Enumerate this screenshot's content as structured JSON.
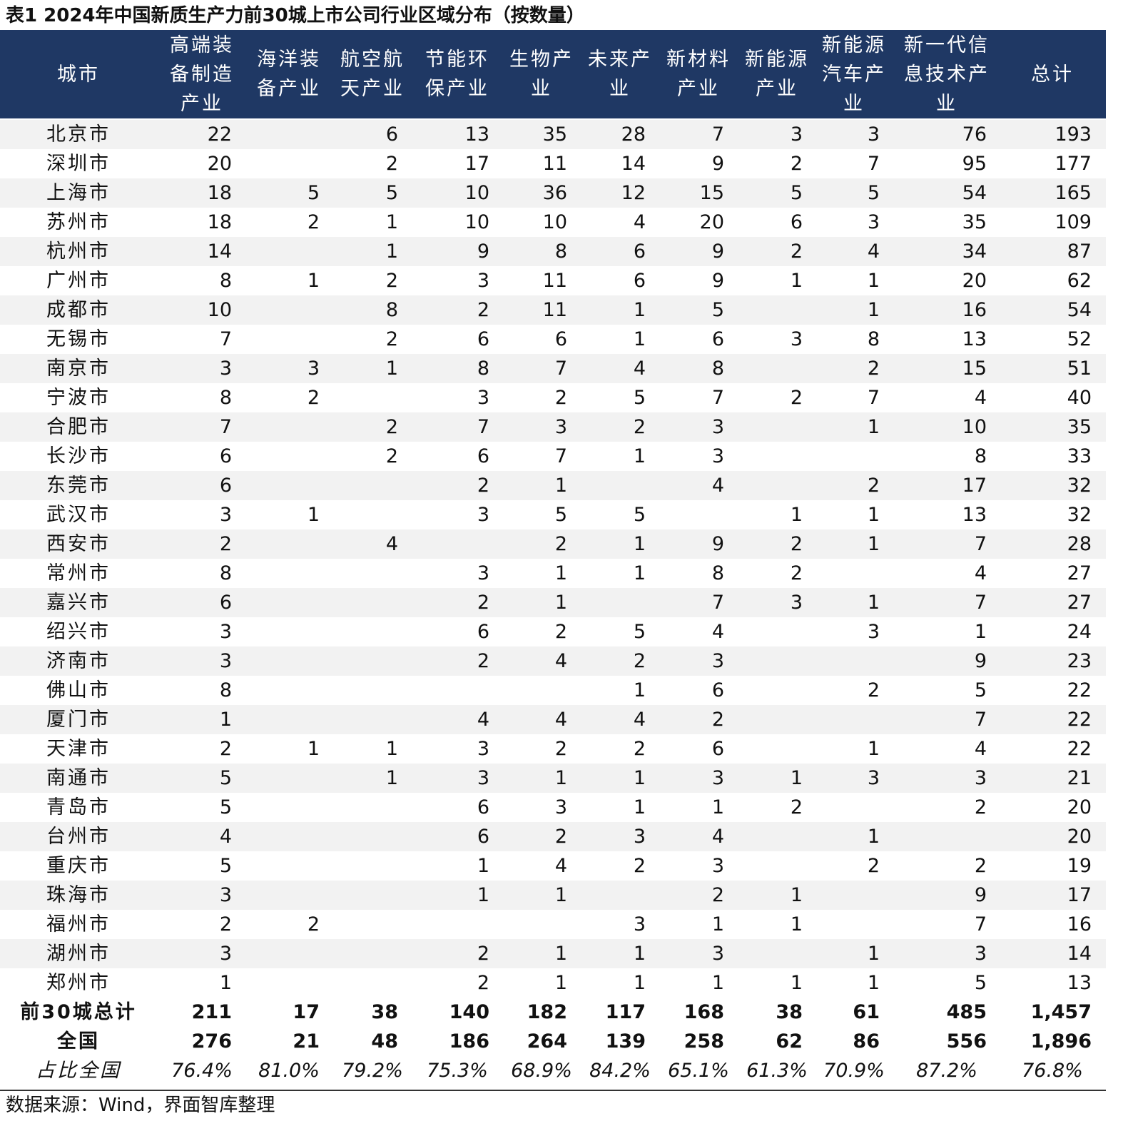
{
  "title": "表1 2024年中国新质生产力前30城上市公司行业区域分布（按数量）",
  "table": {
    "header": [
      [
        "城市"
      ],
      [
        "高端装",
        "备制造",
        "产业"
      ],
      [
        "海洋装",
        "备产业"
      ],
      [
        "航空航",
        "天产业"
      ],
      [
        "节能环",
        "保产业"
      ],
      [
        "生物产",
        "业"
      ],
      [
        "未来产",
        "业"
      ],
      [
        "新材料",
        "产业"
      ],
      [
        "新能源",
        "产业"
      ],
      [
        "新能源",
        "汽车产",
        "业"
      ],
      [
        "新一代信",
        "息技术产",
        "业"
      ],
      [
        "总计"
      ]
    ],
    "rows": [
      [
        "北京市",
        22,
        null,
        6,
        13,
        35,
        28,
        7,
        3,
        3,
        76,
        193
      ],
      [
        "深圳市",
        20,
        null,
        2,
        17,
        11,
        14,
        9,
        2,
        7,
        95,
        177
      ],
      [
        "上海市",
        18,
        5,
        5,
        10,
        36,
        12,
        15,
        5,
        5,
        54,
        165
      ],
      [
        "苏州市",
        18,
        2,
        1,
        10,
        10,
        4,
        20,
        6,
        3,
        35,
        109
      ],
      [
        "杭州市",
        14,
        null,
        1,
        9,
        8,
        6,
        9,
        2,
        4,
        34,
        87
      ],
      [
        "广州市",
        8,
        1,
        2,
        3,
        11,
        6,
        9,
        1,
        1,
        20,
        62
      ],
      [
        "成都市",
        10,
        null,
        8,
        2,
        11,
        1,
        5,
        null,
        1,
        16,
        54
      ],
      [
        "无锡市",
        7,
        null,
        2,
        6,
        6,
        1,
        6,
        3,
        8,
        13,
        52
      ],
      [
        "南京市",
        3,
        3,
        1,
        8,
        7,
        4,
        8,
        null,
        2,
        15,
        51
      ],
      [
        "宁波市",
        8,
        2,
        null,
        3,
        2,
        5,
        7,
        2,
        7,
        4,
        40
      ],
      [
        "合肥市",
        7,
        null,
        2,
        7,
        3,
        2,
        3,
        null,
        1,
        10,
        35
      ],
      [
        "长沙市",
        6,
        null,
        2,
        6,
        7,
        1,
        3,
        null,
        null,
        8,
        33
      ],
      [
        "东莞市",
        6,
        null,
        null,
        2,
        1,
        null,
        4,
        null,
        2,
        17,
        32
      ],
      [
        "武汉市",
        3,
        1,
        null,
        3,
        5,
        5,
        null,
        1,
        1,
        13,
        32
      ],
      [
        "西安市",
        2,
        null,
        4,
        null,
        2,
        1,
        9,
        2,
        1,
        7,
        28
      ],
      [
        "常州市",
        8,
        null,
        null,
        3,
        1,
        1,
        8,
        2,
        null,
        4,
        27
      ],
      [
        "嘉兴市",
        6,
        null,
        null,
        2,
        1,
        null,
        7,
        3,
        1,
        7,
        27
      ],
      [
        "绍兴市",
        3,
        null,
        null,
        6,
        2,
        5,
        4,
        null,
        3,
        1,
        24
      ],
      [
        "济南市",
        3,
        null,
        null,
        2,
        4,
        2,
        3,
        null,
        null,
        9,
        23
      ],
      [
        "佛山市",
        8,
        null,
        null,
        null,
        null,
        1,
        6,
        null,
        2,
        5,
        22
      ],
      [
        "厦门市",
        1,
        null,
        null,
        4,
        4,
        4,
        2,
        null,
        null,
        7,
        22
      ],
      [
        "天津市",
        2,
        1,
        1,
        3,
        2,
        2,
        6,
        null,
        1,
        4,
        22
      ],
      [
        "南通市",
        5,
        null,
        1,
        3,
        1,
        1,
        3,
        1,
        3,
        3,
        21
      ],
      [
        "青岛市",
        5,
        null,
        null,
        6,
        3,
        1,
        1,
        2,
        null,
        2,
        20
      ],
      [
        "台州市",
        4,
        null,
        null,
        6,
        2,
        3,
        4,
        null,
        1,
        null,
        20
      ],
      [
        "重庆市",
        5,
        null,
        null,
        1,
        4,
        2,
        3,
        null,
        2,
        2,
        19
      ],
      [
        "珠海市",
        3,
        null,
        null,
        1,
        1,
        null,
        2,
        1,
        null,
        9,
        17
      ],
      [
        "福州市",
        2,
        2,
        null,
        null,
        null,
        3,
        1,
        1,
        null,
        7,
        16
      ],
      [
        "湖州市",
        3,
        null,
        null,
        2,
        1,
        1,
        3,
        null,
        1,
        3,
        14
      ],
      [
        "郑州市",
        1,
        null,
        null,
        2,
        1,
        1,
        1,
        1,
        1,
        5,
        13
      ]
    ],
    "totals": [
      [
        "前30城总计",
        211,
        17,
        38,
        140,
        182,
        117,
        168,
        38,
        61,
        485,
        "1,457"
      ],
      [
        "全国",
        276,
        21,
        48,
        186,
        264,
        139,
        258,
        62,
        86,
        556,
        "1,896"
      ]
    ],
    "share": [
      "占比全国",
      "76.4%",
      "81.0%",
      "79.2%",
      "75.3%",
      "68.9%",
      "84.2%",
      "65.1%",
      "61.3%",
      "70.9%",
      "87.2%",
      "76.8%"
    ]
  },
  "source": "数据来源：Wind，界面智库整理"
}
